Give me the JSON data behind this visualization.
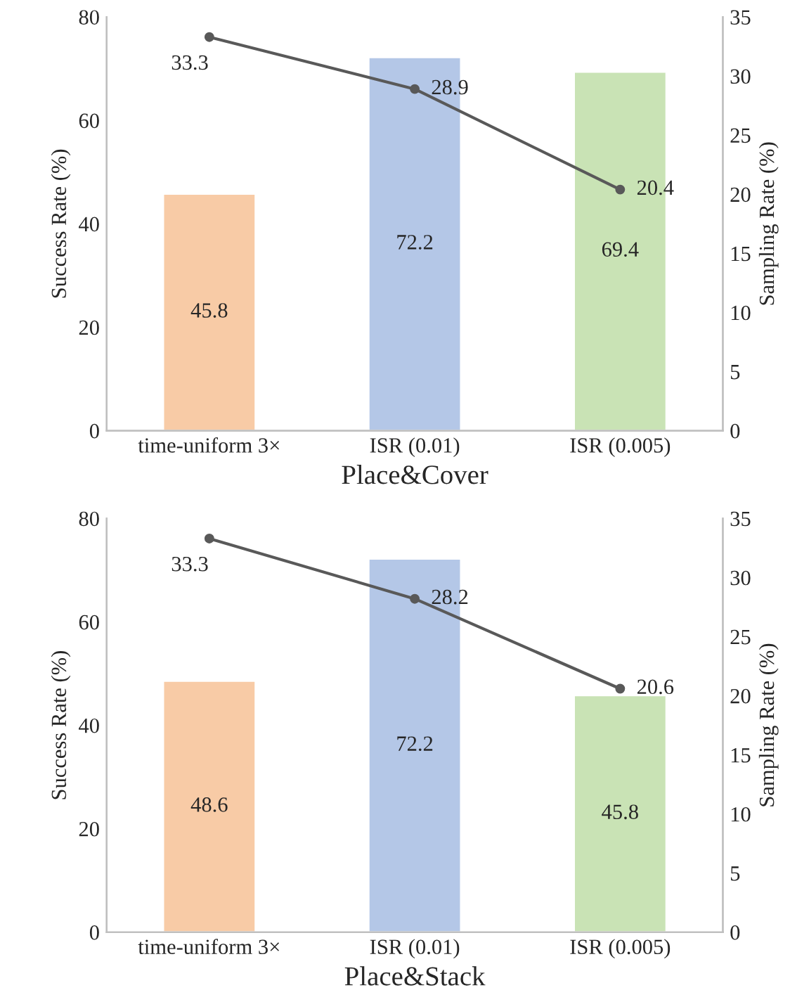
{
  "chart_data": [
    {
      "type": "bar",
      "xlabel": "Place&Cover",
      "ylabel": "Success Rate (%)",
      "y2label": "Sampling Rate (%)",
      "categories": [
        "time-uniform 3×",
        "ISR (0.01)",
        "ISR (0.005)"
      ],
      "series": [
        {
          "colors": [
            "#f8cba6",
            "#b4c7e7",
            "#c9e3b5"
          ],
          "values": [
            45.8,
            72.2,
            69.4
          ]
        },
        {
          "type": "line",
          "axis": "y2",
          "color": "#595959",
          "values": [
            33.3,
            28.9,
            20.4
          ]
        }
      ],
      "ylim": [
        0,
        80
      ],
      "yticks": [
        0,
        20,
        40,
        60,
        80
      ],
      "y2lim": [
        0,
        35
      ],
      "y2ticks": [
        0,
        5,
        10,
        15,
        20,
        25,
        30,
        35
      ],
      "data_labels": true,
      "marker": "circle",
      "grid": false
    },
    {
      "type": "bar",
      "xlabel": "Place&Stack",
      "ylabel": "Success Rate (%)",
      "y2label": "Sampling Rate (%)",
      "categories": [
        "time-uniform 3×",
        "ISR (0.01)",
        "ISR (0.005)"
      ],
      "series": [
        {
          "colors": [
            "#f8cba6",
            "#b4c7e7",
            "#c9e3b5"
          ],
          "values": [
            48.6,
            72.2,
            45.8
          ]
        },
        {
          "type": "line",
          "axis": "y2",
          "color": "#595959",
          "values": [
            33.3,
            28.2,
            20.6
          ]
        }
      ],
      "ylim": [
        0,
        80
      ],
      "yticks": [
        0,
        20,
        40,
        60,
        80
      ],
      "y2lim": [
        0,
        35
      ],
      "y2ticks": [
        0,
        5,
        10,
        15,
        20,
        25,
        30,
        35
      ],
      "data_labels": true,
      "marker": "circle",
      "grid": false
    }
  ]
}
